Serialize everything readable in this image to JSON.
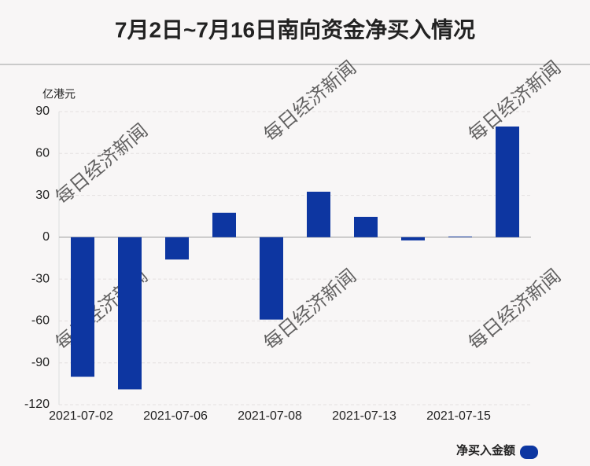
{
  "chart_data": {
    "type": "bar",
    "title": "7月2日~7月16日南向资金净买入情况",
    "y_axis_label": "亿港元",
    "watermark": "每日经济新闻",
    "categories": [
      "2021-07-02",
      null,
      "2021-07-06",
      null,
      "2021-07-08",
      null,
      "2021-07-13",
      null,
      "2021-07-15",
      null
    ],
    "series": [
      {
        "name": "净买入金额",
        "color": "#0d36a1",
        "values": [
          -100,
          -109,
          -16,
          17.5,
          -59,
          32.6,
          14.6,
          -2.3,
          0.5,
          79.3
        ]
      }
    ],
    "ylim": [
      -120,
      90
    ],
    "yticks": [
      -120,
      -90,
      -60,
      -30,
      0,
      30,
      60,
      90
    ],
    "grid": true
  }
}
